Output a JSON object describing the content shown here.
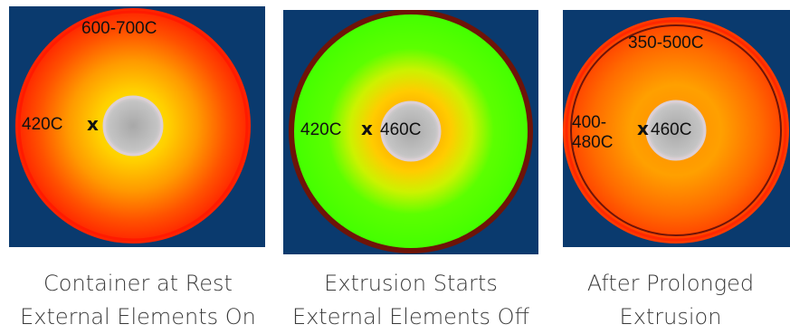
{
  "panels": [
    {
      "outer_temp": "600-700C",
      "point_temp": "420C",
      "point_marker": "x",
      "center_temp": "",
      "caption": [
        "Container at Rest",
        "External Elements On"
      ]
    },
    {
      "outer_temp": "",
      "point_temp": "420C",
      "point_marker": "x",
      "center_temp": "460C",
      "caption": [
        "Extrusion Starts",
        "External Elements Off"
      ]
    },
    {
      "outer_temp": "350-500C",
      "point_temp": "400-\n480C",
      "point_marker": "x",
      "center_temp": "460C",
      "caption": [
        "After Prolonged",
        "Extrusion"
      ]
    }
  ],
  "colors": {
    "background": "#0a3a6e",
    "hot_red": "#ff1e00",
    "orange": "#ff7a00",
    "yellow": "#f4f400",
    "green": "#44ff00",
    "dark_rim": "#6e1408",
    "bore": "#b4b4b4"
  }
}
